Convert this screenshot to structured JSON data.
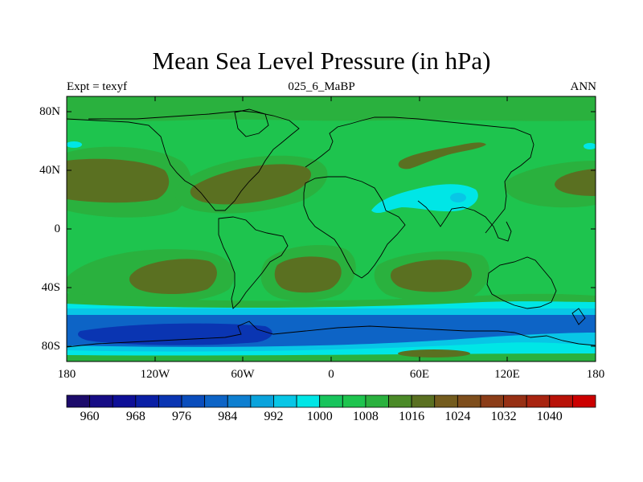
{
  "chart_data": {
    "type": "heatmap",
    "title": "Mean Sea Level Pressure (in hPa)",
    "subtitle_left": "Expt = texyf",
    "subtitle_center": "025_6_MaBP",
    "subtitle_right": "ANN",
    "x_ticks": [
      "180",
      "120W",
      "60W",
      "0",
      "60E",
      "120E",
      "180"
    ],
    "y_ticks": [
      "80N",
      "40N",
      "0",
      "40S",
      "80S"
    ],
    "xlim": [
      -180,
      180
    ],
    "ylim": [
      -90,
      90
    ],
    "colorbar": {
      "levels": [
        956,
        960,
        964,
        968,
        972,
        976,
        980,
        984,
        988,
        992,
        996,
        1000,
        1004,
        1008,
        1012,
        1016,
        1020,
        1024,
        1028,
        1032,
        1036,
        1040,
        1044
      ],
      "labels": [
        "960",
        "968",
        "976",
        "984",
        "992",
        "1000",
        "1008",
        "1016",
        "1024",
        "1032",
        "1040"
      ],
      "colors": [
        "#1c0b6b",
        "#160c85",
        "#0e0f97",
        "#0a1fa5",
        "#0a35b2",
        "#0a4dbc",
        "#0d64c6",
        "#0e7fd0",
        "#0aa3dc",
        "#08c6e6",
        "#00e6e6",
        "#18c45c",
        "#1ec44e",
        "#2ab13e",
        "#4b8a28",
        "#5a7021",
        "#745c1e",
        "#7e4e1c",
        "#8b3d18",
        "#973014",
        "#a82410",
        "#b81208",
        "#cc0000"
      ]
    },
    "colors": {
      "base_green": "#1ec44e",
      "dark_green": "#2ab13e",
      "olive": "#5a7021",
      "olive_mid": "#4b8a28",
      "cyan": "#00e6e6",
      "light_blue": "#08c6e6",
      "blue": "#0d64c6",
      "deep_blue": "#0a35b2"
    }
  }
}
